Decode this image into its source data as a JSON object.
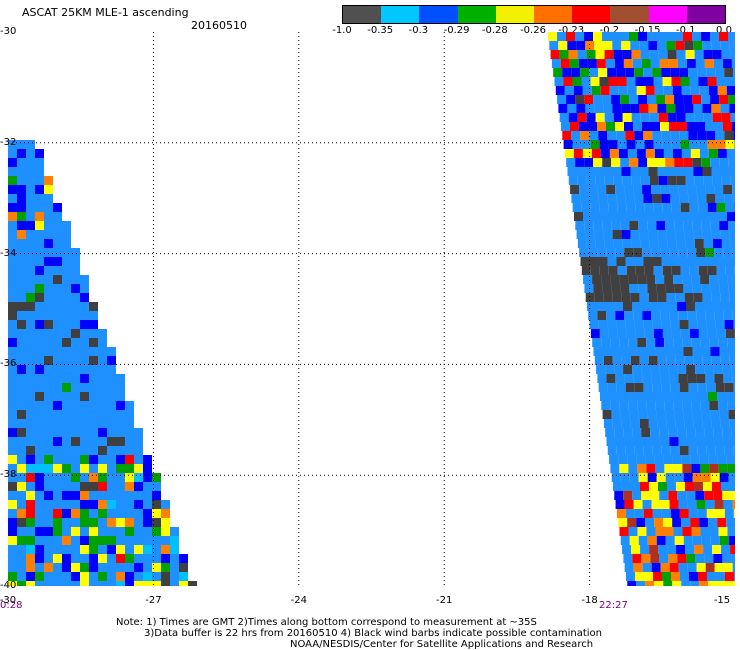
{
  "header": {
    "title": "ASCAT 25KM MLE-1 ascending",
    "date": "20160510"
  },
  "colorbar": {
    "colors": [
      "#505050",
      "#00c8ff",
      "#0050ff",
      "#00b000",
      "#f0f000",
      "#ff7000",
      "#ff0000",
      "#a05030",
      "#ff00ff",
      "#8000a0"
    ],
    "labels": [
      "-1.0",
      "-0.35",
      "-0.3",
      "-0.29",
      "-0.28",
      "-0.26",
      "-0.23",
      "-0.2",
      "-0.15",
      "-0.1",
      "0.0"
    ]
  },
  "map": {
    "y_ticks": [
      "-30",
      "-32",
      "-34",
      "-36",
      "-38",
      "-40"
    ],
    "x_ticks": [
      "-30",
      "-27",
      "-24",
      "-21",
      "-18",
      "-15"
    ],
    "swath_times": {
      "left": "0:28",
      "right": "22:27"
    },
    "palette": {
      "background_blue": "#1e90ff",
      "deep_blue": "#0000ff",
      "dark_gray": "#404040",
      "green": "#00a000",
      "yellow": "#ffff00",
      "orange": "#ff8000",
      "red": "#ff0000",
      "brown": "#b03020",
      "cyan": "#00c0ff"
    }
  },
  "notes": {
    "line1": "Note: 1) Times are GMT 2)Times along bottom correspond to measurement at ~35S",
    "line2": "3)Data buffer is 22 hrs from 20160510 4) Black wind barbs indicate possible contamination",
    "line3": "NOAA/NESDIS/Center for Satellite Applications and Research"
  }
}
